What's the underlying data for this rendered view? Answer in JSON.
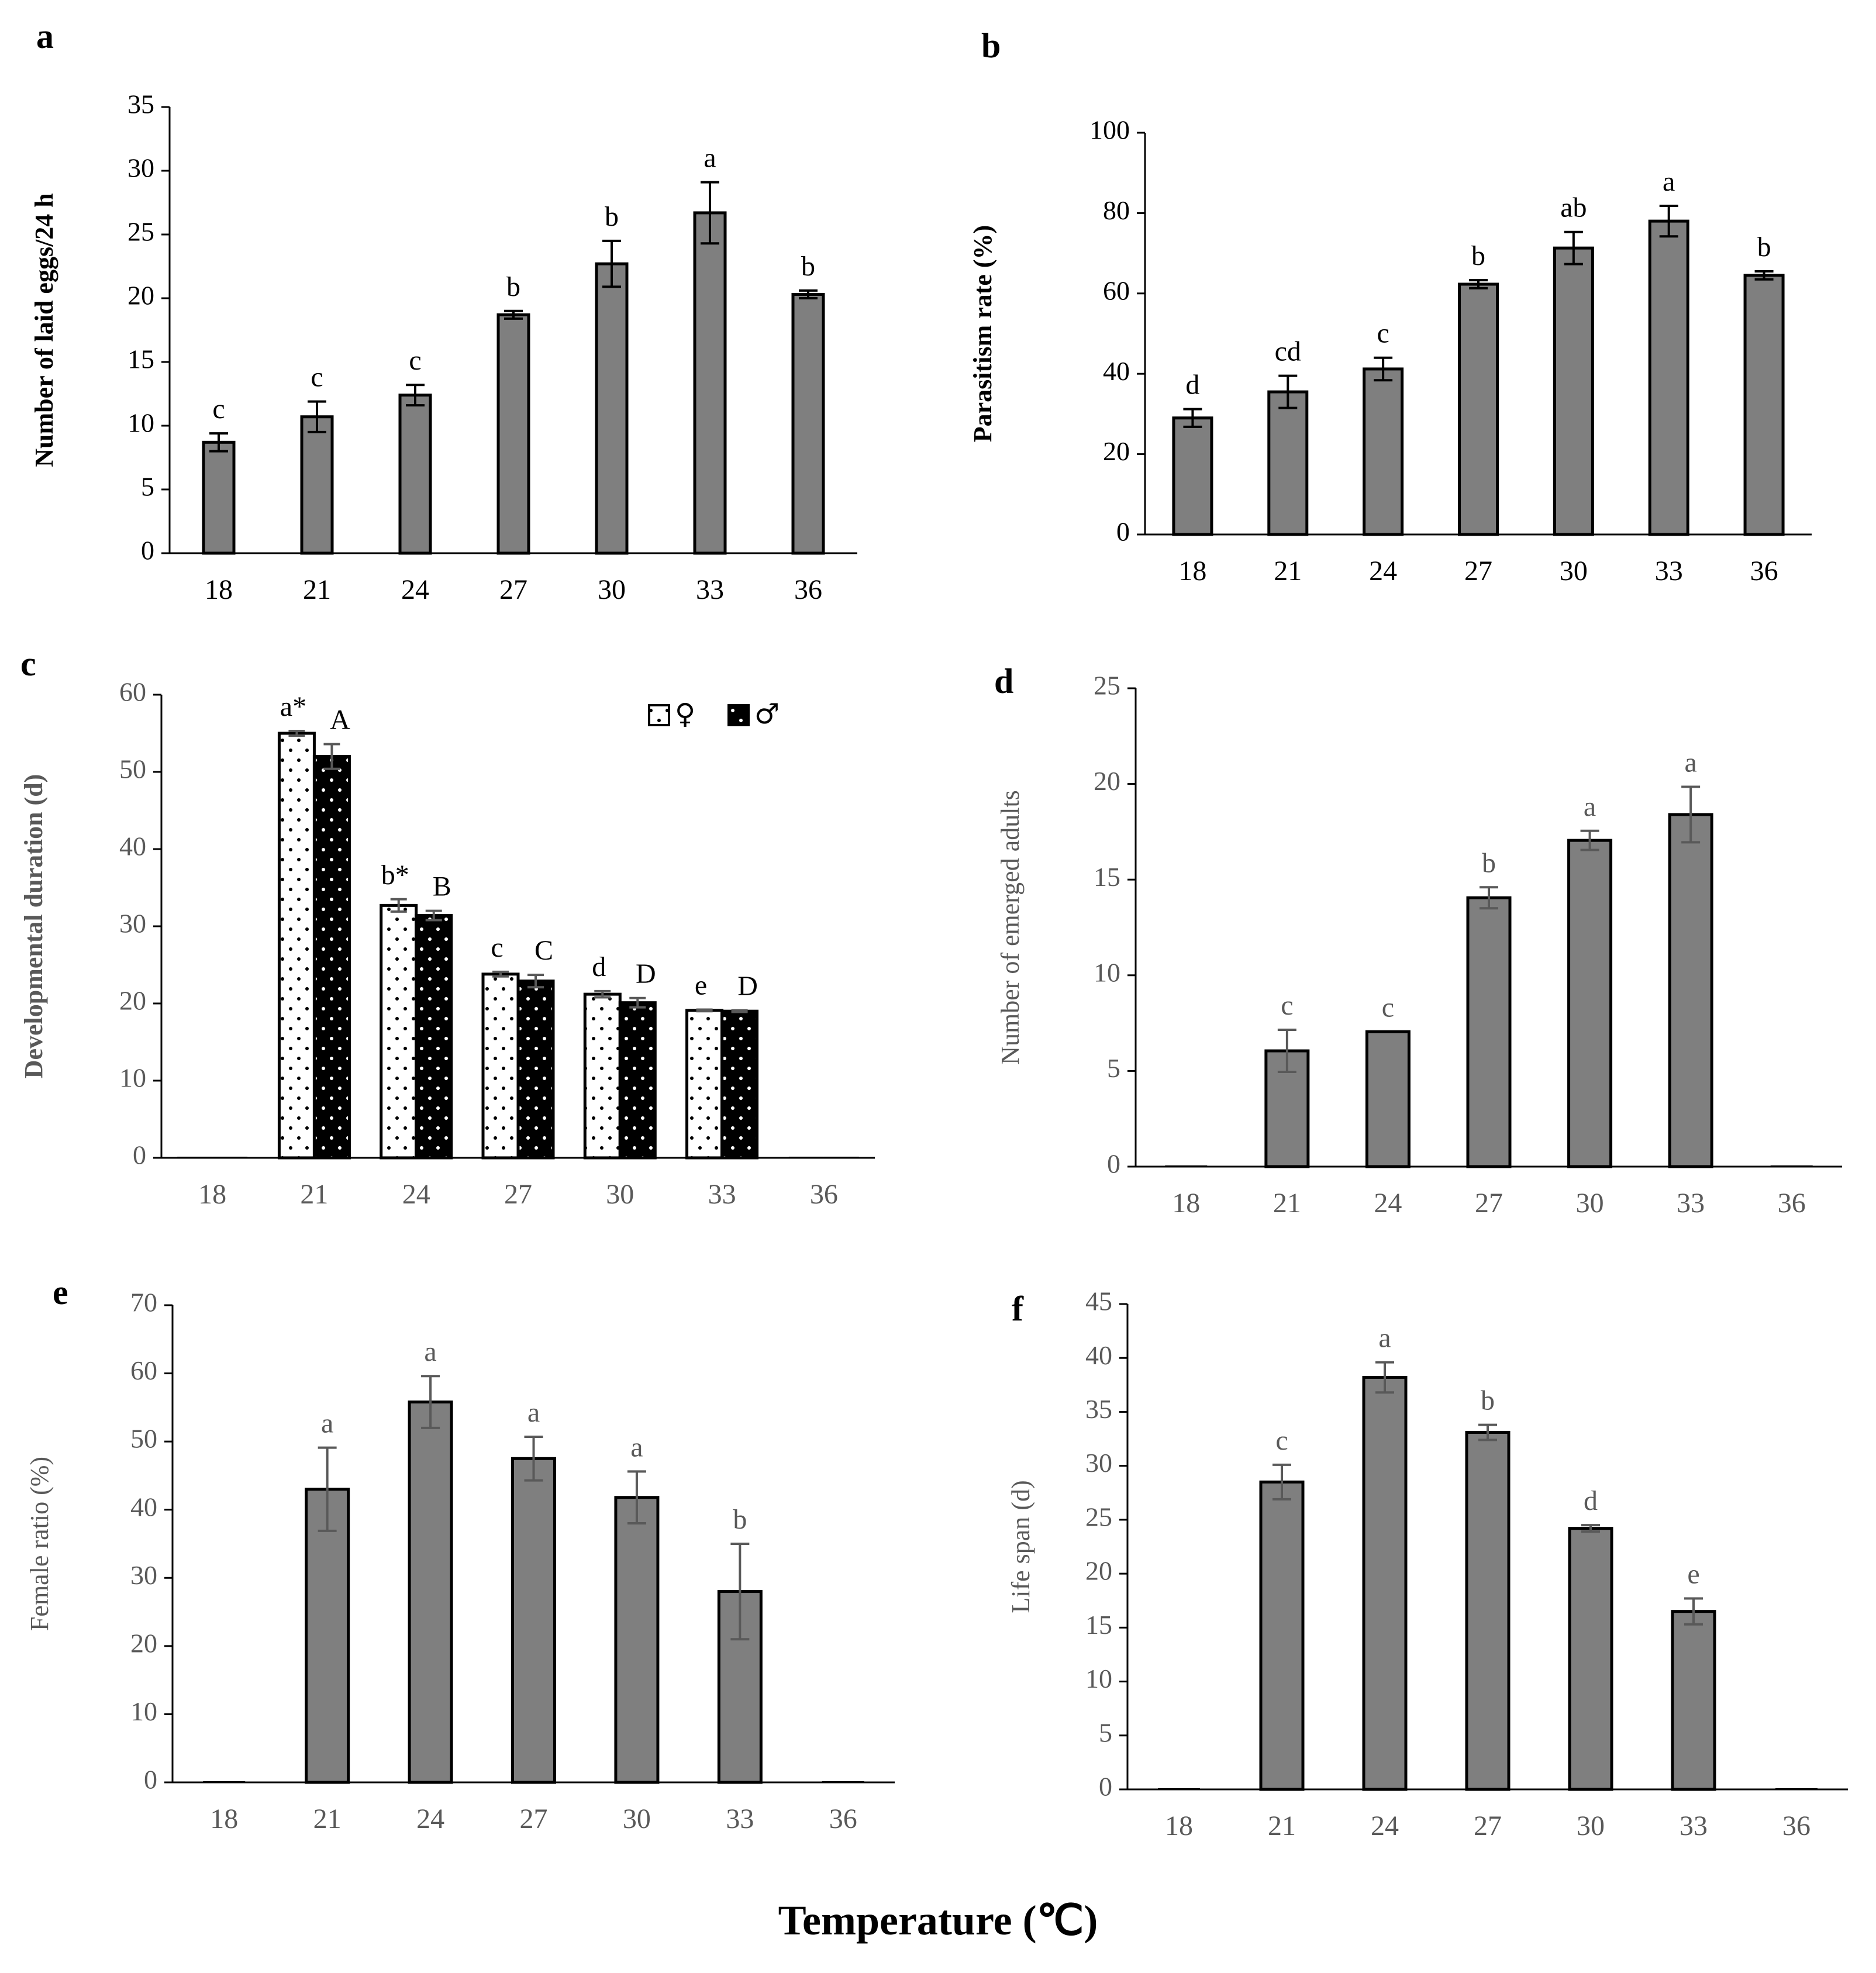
{
  "figure": {
    "xlabel": "Temperature (℃)"
  },
  "chart_data": [
    {
      "panel": "a",
      "type": "bar",
      "categories": [
        "18",
        "21",
        "24",
        "27",
        "30",
        "33",
        "36"
      ],
      "ylabel": "Number of laid eggs/24 h",
      "ylim": [
        0,
        35
      ],
      "yticks": [
        0,
        5,
        10,
        15,
        20,
        25,
        30,
        35
      ],
      "series": [
        {
          "color": "#7f7f7f",
          "values": [
            8.7,
            10.7,
            12.4,
            18.7,
            22.7,
            26.7,
            20.3
          ],
          "errors": [
            0.7,
            1.2,
            0.8,
            0.3,
            1.8,
            2.4,
            0.3
          ],
          "letters": [
            "c",
            "c",
            "c",
            "b",
            "b",
            "a",
            "b"
          ]
        }
      ]
    },
    {
      "panel": "b",
      "type": "bar",
      "categories": [
        "18",
        "21",
        "24",
        "27",
        "30",
        "33",
        "36"
      ],
      "ylabel": "Parasitism rate (%)",
      "ylim": [
        0,
        100
      ],
      "yticks": [
        0,
        20,
        40,
        60,
        80,
        100
      ],
      "series": [
        {
          "color": "#7f7f7f",
          "values": [
            29,
            35.5,
            41.2,
            62.3,
            71.3,
            78,
            64.5
          ],
          "errors": [
            2.2,
            4,
            2.8,
            1,
            4,
            3.8,
            1
          ],
          "letters": [
            "d",
            "cd",
            "c",
            "b",
            "ab",
            "a",
            "b"
          ]
        }
      ]
    },
    {
      "panel": "c",
      "type": "bar",
      "categories": [
        "18",
        "21",
        "24",
        "27",
        "30",
        "33",
        "36"
      ],
      "ylabel": "Developmental duration (d)",
      "ylim": [
        0,
        60
      ],
      "yticks": [
        0,
        10,
        20,
        30,
        40,
        50,
        60
      ],
      "legend_position": "top-right",
      "series": [
        {
          "name": "♀",
          "pattern": "white-dotted",
          "values": [
            0,
            55,
            32.7,
            23.8,
            21.2,
            19.1,
            0
          ],
          "errors": [
            0,
            0.3,
            0.8,
            0.3,
            0.4,
            0.1,
            0
          ],
          "letters": [
            "",
            "a*",
            "b*",
            "c",
            "d",
            "e",
            ""
          ]
        },
        {
          "name": "♂",
          "pattern": "black-dotted",
          "values": [
            0,
            52,
            31.4,
            22.9,
            20.1,
            19,
            0
          ],
          "errors": [
            0,
            1.6,
            0.6,
            0.8,
            0.6,
            0.1,
            0
          ],
          "letters": [
            "",
            "A",
            "B",
            "C",
            "D",
            "D",
            ""
          ]
        }
      ]
    },
    {
      "panel": "d",
      "type": "bar",
      "categories": [
        "18",
        "21",
        "24",
        "27",
        "30",
        "33",
        "36"
      ],
      "ylabel": "Number of emerged adults",
      "ylim": [
        0,
        25
      ],
      "yticks": [
        0,
        5,
        10,
        15,
        20,
        25
      ],
      "series": [
        {
          "color": "#7f7f7f",
          "values": [
            0,
            6.05,
            7.05,
            14.05,
            17.05,
            18.4,
            0
          ],
          "errors": [
            0,
            1.1,
            0,
            0.55,
            0.5,
            1.45,
            0
          ],
          "letters": [
            "",
            "c",
            "c",
            "b",
            "a",
            "a",
            ""
          ]
        }
      ]
    },
    {
      "panel": "e",
      "type": "bar",
      "categories": [
        "18",
        "21",
        "24",
        "27",
        "30",
        "33",
        "36"
      ],
      "ylabel": "Female ratio (%)",
      "ylim": [
        0,
        70
      ],
      "yticks": [
        0,
        10,
        20,
        30,
        40,
        50,
        60,
        70
      ],
      "series": [
        {
          "color": "#7f7f7f",
          "values": [
            0,
            43,
            55.8,
            47.5,
            41.8,
            28,
            0
          ],
          "errors": [
            0,
            6.1,
            3.8,
            3.2,
            3.8,
            7,
            0
          ],
          "letters": [
            "",
            "a",
            "a",
            "a",
            "a",
            "b",
            ""
          ]
        }
      ]
    },
    {
      "panel": "f",
      "type": "bar",
      "categories": [
        "18",
        "21",
        "24",
        "27",
        "30",
        "33",
        "36"
      ],
      "ylabel": "Life span (d)",
      "ylim": [
        0,
        45
      ],
      "yticks": [
        0,
        5,
        10,
        15,
        20,
        25,
        30,
        35,
        40,
        45
      ],
      "series": [
        {
          "color": "#7f7f7f",
          "values": [
            0,
            28.5,
            38.2,
            33.1,
            24.2,
            16.5,
            0
          ],
          "errors": [
            0,
            1.6,
            1.4,
            0.7,
            0.3,
            1.2,
            0
          ],
          "letters": [
            "",
            "c",
            "a",
            "b",
            "d",
            "e",
            ""
          ]
        }
      ]
    }
  ]
}
